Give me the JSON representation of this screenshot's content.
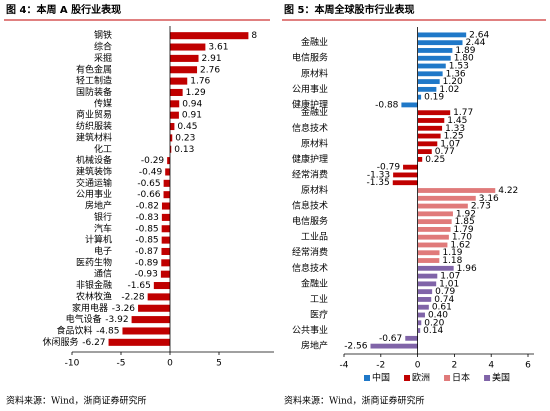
{
  "chart_data": [
    {
      "type": "bar",
      "orientation": "horizontal",
      "title": "图 4：本周 A 股行业表现",
      "source": "资料来源：Wind，浙商证券研究所",
      "categories": [
        "钢铁",
        "综合",
        "采掘",
        "有色金属",
        "轻工制造",
        "国防装备",
        "传媒",
        "商业贸易",
        "纺织服装",
        "建筑材料",
        "化工",
        "机械设备",
        "建筑装饰",
        "交通运输",
        "公用事业",
        "房地产",
        "银行",
        "汽车",
        "计算机",
        "电子",
        "医药生物",
        "通信",
        "非银金融",
        "农林牧渔",
        "家用电器",
        "电气设备",
        "食品饮料",
        "休闲服务"
      ],
      "values": [
        8,
        3.61,
        2.91,
        2.76,
        1.76,
        1.29,
        0.94,
        0.91,
        0.45,
        0.23,
        0.13,
        -0.29,
        -0.49,
        -0.65,
        -0.66,
        -0.82,
        -0.83,
        -0.85,
        -0.85,
        -0.87,
        -0.89,
        -0.93,
        -1.65,
        -2.28,
        -3.26,
        -3.92,
        -4.85,
        -6.27
      ],
      "color": "#c00000",
      "xlim": [
        -10,
        10
      ],
      "xticks": [
        -10,
        -5,
        0,
        5
      ]
    },
    {
      "type": "bar",
      "orientation": "horizontal",
      "title": "图 5：本周全球股市行业表现",
      "source": "资料来源：Wind，浙商证券研究所",
      "categories": [
        null,
        "金融业",
        null,
        "电信服务",
        null,
        "原材料",
        null,
        "公用事业",
        null,
        "健康护理",
        "金融业",
        null,
        "信息技术",
        null,
        "原材料",
        null,
        "健康护理",
        null,
        "经常消费",
        null,
        "原材料",
        null,
        "信息技术",
        null,
        "电信服务",
        null,
        "工业品",
        null,
        "经常消费",
        null,
        "信息技术",
        null,
        "金融业",
        null,
        "工业",
        null,
        "医疗",
        null,
        "公共事业",
        null,
        "房地产"
      ],
      "series": [
        {
          "name": "中国",
          "color": "#1f78c8",
          "values": [
            2.64,
            2.44,
            1.89,
            1.8,
            1.53,
            1.36,
            1.2,
            1.02,
            0.19,
            -0.88,
            null,
            null,
            null,
            null,
            null,
            null,
            null,
            null,
            null,
            null,
            null,
            null,
            null,
            null,
            null,
            null,
            null,
            null,
            null,
            null,
            null,
            null,
            null,
            null,
            null,
            null,
            null,
            null,
            null,
            null,
            null
          ],
          "value_labels": [
            "2.64",
            "2.44",
            "1.89",
            "1.80",
            "1.53",
            "1.36",
            "1.20",
            "1.02",
            "0.19",
            "-0.88",
            null,
            null,
            null,
            null,
            null,
            null,
            null,
            null,
            null,
            null,
            null,
            null,
            null,
            null,
            null,
            null,
            null,
            null,
            null,
            null,
            null,
            null,
            null,
            null,
            null,
            null,
            null,
            null,
            null,
            null,
            null
          ]
        },
        {
          "name": "欧洲",
          "color": "#c00000",
          "values": [
            null,
            null,
            null,
            null,
            null,
            null,
            null,
            null,
            null,
            null,
            1.77,
            1.45,
            1.33,
            1.25,
            1.07,
            0.77,
            0.25,
            -0.79,
            -1.33,
            -1.35,
            null,
            null,
            null,
            null,
            null,
            null,
            null,
            null,
            null,
            null,
            null,
            null,
            null,
            null,
            null,
            null,
            null,
            null,
            null,
            null,
            null
          ],
          "value_labels": [
            null,
            null,
            null,
            null,
            null,
            null,
            null,
            null,
            null,
            null,
            "1.77",
            "1.45",
            "1.33",
            "1.25",
            "1.07",
            "0.77",
            "0.25",
            "-0.79",
            "-1.33",
            "-1.35",
            null,
            null,
            null,
            null,
            null,
            null,
            null,
            null,
            null,
            null,
            null,
            null,
            null,
            null,
            null,
            null,
            null,
            null,
            null,
            null,
            null
          ]
        },
        {
          "name": "日本",
          "color": "#e07a7a",
          "values": [
            null,
            null,
            null,
            null,
            null,
            null,
            null,
            null,
            null,
            null,
            null,
            null,
            null,
            null,
            null,
            null,
            null,
            null,
            null,
            null,
            4.22,
            3.16,
            2.73,
            1.92,
            1.85,
            1.79,
            1.7,
            1.62,
            1.19,
            1.18,
            null,
            null,
            null,
            null,
            null,
            null,
            null,
            null,
            null,
            null,
            null
          ],
          "value_labels": [
            null,
            null,
            null,
            null,
            null,
            null,
            null,
            null,
            null,
            null,
            null,
            null,
            null,
            null,
            null,
            null,
            null,
            null,
            null,
            null,
            "4.22",
            "3.16",
            "2.73",
            "1.92",
            "1.85",
            "1.79",
            "1.70",
            "1.62",
            "1.19",
            "1.18",
            null,
            null,
            null,
            null,
            null,
            null,
            null,
            null,
            null,
            null,
            null
          ]
        },
        {
          "name": "美国",
          "color": "#8064a8",
          "values": [
            null,
            null,
            null,
            null,
            null,
            null,
            null,
            null,
            null,
            null,
            null,
            null,
            null,
            null,
            null,
            null,
            null,
            null,
            null,
            null,
            null,
            null,
            null,
            null,
            null,
            null,
            null,
            null,
            null,
            null,
            1.96,
            1.07,
            1.01,
            0.79,
            0.74,
            0.61,
            0.4,
            0.2,
            0.14,
            -0.67,
            -2.56
          ],
          "value_labels": [
            null,
            null,
            null,
            null,
            null,
            null,
            null,
            null,
            null,
            null,
            null,
            null,
            null,
            null,
            null,
            null,
            null,
            null,
            null,
            null,
            null,
            null,
            null,
            null,
            null,
            null,
            null,
            null,
            null,
            null,
            "1.96",
            "1.07",
            "1.01",
            "0.79",
            "0.74",
            "0.61",
            "0.40",
            "0.20",
            "0.14",
            "-0.67",
            "-2.56"
          ]
        }
      ],
      "xlim": [
        -4,
        6
      ],
      "xticks": [
        -4,
        -2,
        0,
        2,
        4,
        6
      ],
      "legend": "bottom"
    }
  ]
}
